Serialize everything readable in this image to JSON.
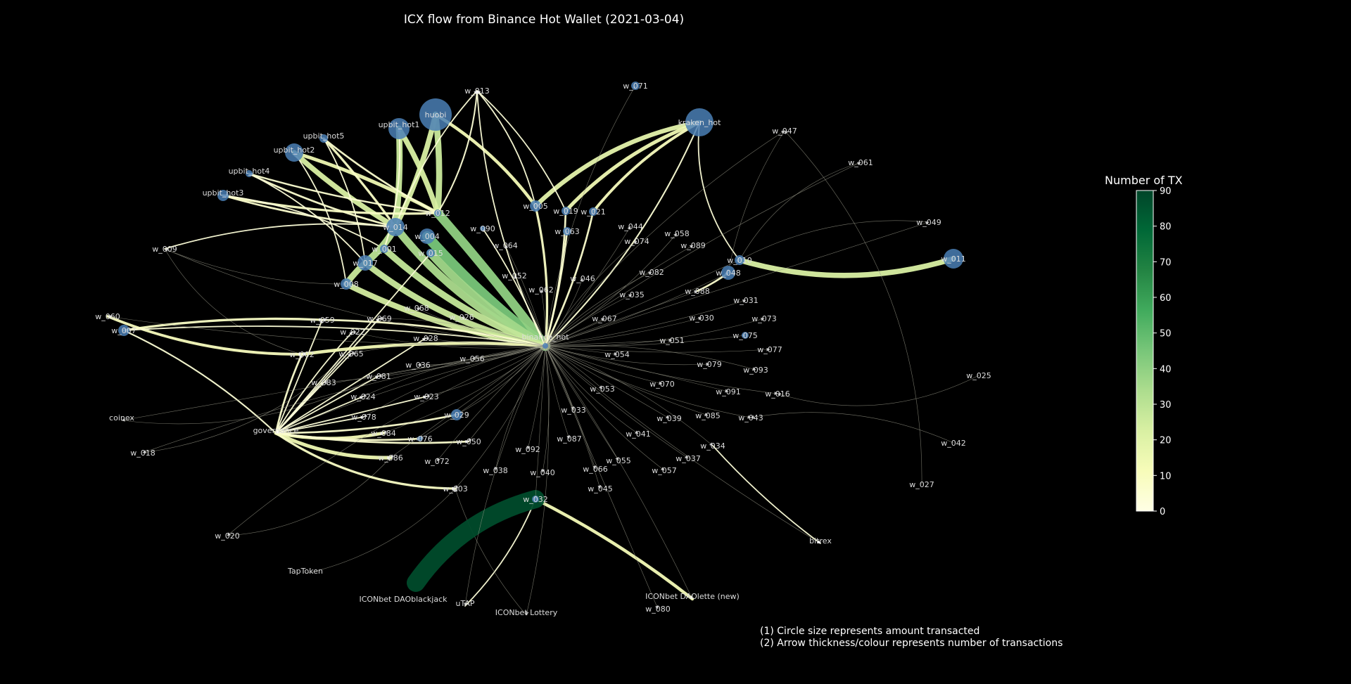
{
  "title": "ICX flow from Binance Hot Wallet (2021-03-04)",
  "colorbar": {
    "title": "Number of TX",
    "ticks": [
      "0",
      "10",
      "20",
      "30",
      "40",
      "50",
      "60",
      "70",
      "80",
      "90"
    ],
    "colors": [
      "#ffffe5",
      "#f7fcb9",
      "#d9f0a3",
      "#addd8e",
      "#78c679",
      "#41ab5d",
      "#238443",
      "#006837",
      "#004529"
    ]
  },
  "notes": [
    "(1) Circle size represents amount transacted",
    "(2) Arrow thickness/colour represents number of transactions"
  ],
  "hub": "binance_hot",
  "nodes": [
    {
      "id": "binance_hot",
      "label": "binance_hot"
    },
    {
      "id": "huobi",
      "label": "huobi"
    },
    {
      "id": "kraken_hot",
      "label": "kraken_hot"
    },
    {
      "id": "upbit_hot1",
      "label": "upbit_hot1"
    },
    {
      "id": "upbit_hot2",
      "label": "upbit_hot2"
    },
    {
      "id": "upbit_hot3",
      "label": "upbit_hot3"
    },
    {
      "id": "upbit_hot4",
      "label": "upbit_hot4"
    },
    {
      "id": "upbit_hot5",
      "label": "upbit_hot5"
    },
    {
      "id": "w_011",
      "label": "w_011"
    },
    {
      "id": "w_013",
      "label": "w_013"
    },
    {
      "id": "w_071",
      "label": "w_071"
    },
    {
      "id": "w_047",
      "label": "w_047"
    },
    {
      "id": "w_061",
      "label": "w_061"
    },
    {
      "id": "w_049",
      "label": "w_049"
    },
    {
      "id": "w_012",
      "label": "w_012"
    },
    {
      "id": "w_014",
      "label": "w_014"
    },
    {
      "id": "w_004",
      "label": "w_004"
    },
    {
      "id": "w_015",
      "label": "w_015"
    },
    {
      "id": "w_001",
      "label": "w_001"
    },
    {
      "id": "w_017",
      "label": "w_017"
    },
    {
      "id": "w_008",
      "label": "w_008"
    },
    {
      "id": "w_009",
      "label": "w_009"
    },
    {
      "id": "w_005",
      "label": "w_005"
    },
    {
      "id": "w_019",
      "label": "w_019"
    },
    {
      "id": "w_021",
      "label": "w_021"
    },
    {
      "id": "w_063",
      "label": "w_063"
    },
    {
      "id": "w_090",
      "label": "w_090"
    },
    {
      "id": "w_064",
      "label": "w_064"
    },
    {
      "id": "w_044",
      "label": "w_044"
    },
    {
      "id": "w_058",
      "label": "w_058"
    },
    {
      "id": "w_074",
      "label": "w_074"
    },
    {
      "id": "w_089",
      "label": "w_089"
    },
    {
      "id": "w_010",
      "label": "w_010"
    },
    {
      "id": "w_048",
      "label": "w_048"
    },
    {
      "id": "w_052",
      "label": "w_052"
    },
    {
      "id": "w_062",
      "label": "w_062"
    },
    {
      "id": "w_046",
      "label": "w_046"
    },
    {
      "id": "w_082",
      "label": "w_082"
    },
    {
      "id": "w_035",
      "label": "w_035"
    },
    {
      "id": "w_088",
      "label": "w_088"
    },
    {
      "id": "w_031",
      "label": "w_031"
    },
    {
      "id": "w_060",
      "label": "w_060"
    },
    {
      "id": "w_007",
      "label": "w_007"
    },
    {
      "id": "w_059",
      "label": "w_059"
    },
    {
      "id": "w_069",
      "label": "w_069"
    },
    {
      "id": "w_068",
      "label": "w_068"
    },
    {
      "id": "w_026",
      "label": "w_026"
    },
    {
      "id": "w_067",
      "label": "w_067"
    },
    {
      "id": "w_030",
      "label": "w_030"
    },
    {
      "id": "w_073",
      "label": "w_073"
    },
    {
      "id": "w_022",
      "label": "w_022"
    },
    {
      "id": "w_028",
      "label": "w_028"
    },
    {
      "id": "w_051",
      "label": "w_051"
    },
    {
      "id": "w_075",
      "label": "w_075"
    },
    {
      "id": "w_002",
      "label": "w_002"
    },
    {
      "id": "w_065",
      "label": "w_065"
    },
    {
      "id": "w_036",
      "label": "w_036"
    },
    {
      "id": "w_056",
      "label": "w_056"
    },
    {
      "id": "w_054",
      "label": "w_054"
    },
    {
      "id": "w_077",
      "label": "w_077"
    },
    {
      "id": "w_079",
      "label": "w_079"
    },
    {
      "id": "w_093",
      "label": "w_093"
    },
    {
      "id": "w_083",
      "label": "w_083"
    },
    {
      "id": "w_081",
      "label": "w_081"
    },
    {
      "id": "w_070",
      "label": "w_070"
    },
    {
      "id": "w_025",
      "label": "w_025"
    },
    {
      "id": "w_024",
      "label": "w_024"
    },
    {
      "id": "w_023",
      "label": "w_023"
    },
    {
      "id": "w_053",
      "label": "w_053"
    },
    {
      "id": "w_091",
      "label": "w_091"
    },
    {
      "id": "w_016",
      "label": "w_016"
    },
    {
      "id": "coinex",
      "label": "coinex"
    },
    {
      "id": "w_078",
      "label": "w_078"
    },
    {
      "id": "w_029",
      "label": "w_029"
    },
    {
      "id": "w_033",
      "label": "w_033"
    },
    {
      "id": "w_039",
      "label": "w_039"
    },
    {
      "id": "w_085",
      "label": "w_085"
    },
    {
      "id": "w_043",
      "label": "w_043"
    },
    {
      "id": "governance",
      "label": "governance"
    },
    {
      "id": "w_084",
      "label": "w_084"
    },
    {
      "id": "w_076",
      "label": "w_076"
    },
    {
      "id": "w_050",
      "label": "w_050"
    },
    {
      "id": "w_087",
      "label": "w_087"
    },
    {
      "id": "w_041",
      "label": "w_041"
    },
    {
      "id": "w_042",
      "label": "w_042"
    },
    {
      "id": "w_018",
      "label": "w_018"
    },
    {
      "id": "w_034",
      "label": "w_034"
    },
    {
      "id": "w_092",
      "label": "w_092"
    },
    {
      "id": "w_086",
      "label": "w_086"
    },
    {
      "id": "w_072",
      "label": "w_072"
    },
    {
      "id": "w_038",
      "label": "w_038"
    },
    {
      "id": "w_040",
      "label": "w_040"
    },
    {
      "id": "w_066",
      "label": "w_066"
    },
    {
      "id": "w_055",
      "label": "w_055"
    },
    {
      "id": "w_037",
      "label": "w_037"
    },
    {
      "id": "w_057",
      "label": "w_057"
    },
    {
      "id": "w_003",
      "label": "w_003"
    },
    {
      "id": "w_045",
      "label": "w_045"
    },
    {
      "id": "w_032",
      "label": "w_032"
    },
    {
      "id": "w_027",
      "label": "w_027"
    },
    {
      "id": "w_020",
      "label": "w_020"
    },
    {
      "id": "bitrex",
      "label": "bitrex"
    },
    {
      "id": "TapToken",
      "label": "TapToken"
    },
    {
      "id": "ICONbet DAOblackjack",
      "label": "ICONbet DAOblackjack"
    },
    {
      "id": "uTAP",
      "label": "uTAP"
    },
    {
      "id": "ICONbet Lottery",
      "label": "ICONbet Lottery"
    },
    {
      "id": "ICONbet DAOlette (new)",
      "label": "ICONbet DAOlette (new)"
    },
    {
      "id": "w_080",
      "label": "w_080"
    }
  ]
}
